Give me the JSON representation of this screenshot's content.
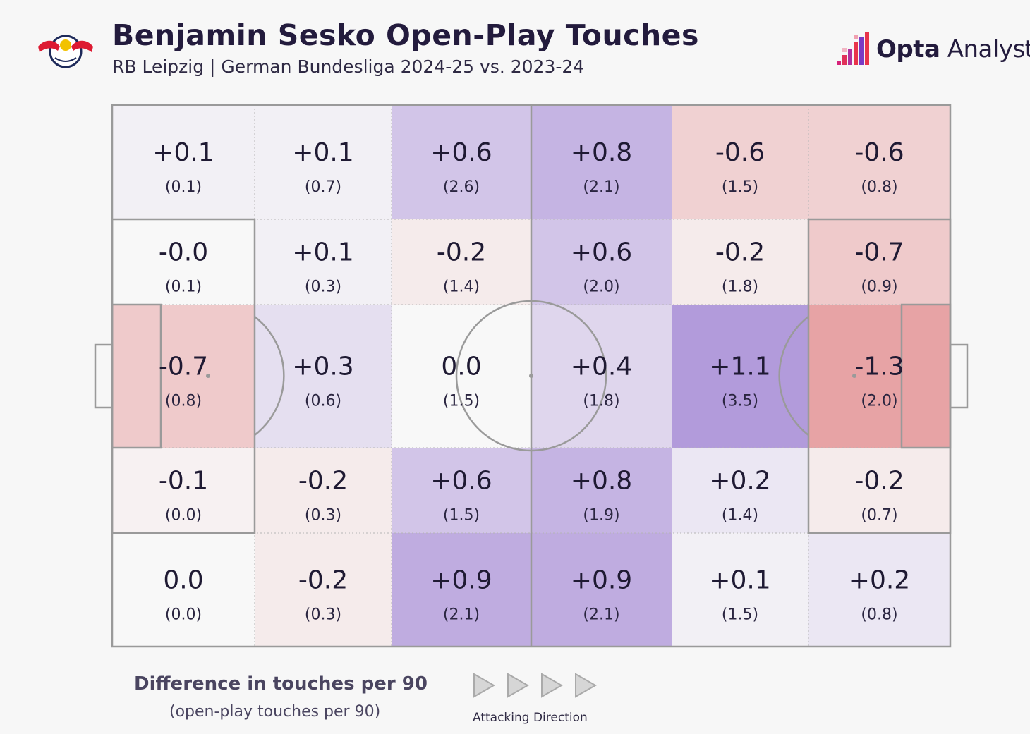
{
  "header": {
    "title": "Benjamin Sesko Open-Play Touches",
    "subtitle": "RB Leipzig | German Bundesliga 2024-25 vs. 2023-24",
    "brand_bold": "Opta",
    "brand_light": " Analyst",
    "club_logo_icon": "rb-leipzig-crest-icon",
    "brand_icon": "opta-bar-icon"
  },
  "legend": {
    "title": "Difference in touches per 90",
    "subtitle": "(open-play touches per 90)",
    "direction_label": "Attacking Direction",
    "direction_icon": "play-arrow-icon"
  },
  "colors": {
    "positive": "#a68ad6",
    "negative": "#e59a9c",
    "neutral": "#f8f8f8",
    "pitch_line": "#9a9a9a"
  },
  "chart_data": {
    "type": "heatmap",
    "columns": 6,
    "rows": 5,
    "cells": [
      [
        {
          "diff": "+0.1",
          "value": "(0.1)",
          "d": 0.1
        },
        {
          "diff": "+0.1",
          "value": "(0.7)",
          "d": 0.1
        },
        {
          "diff": "+0.6",
          "value": "(2.6)",
          "d": 0.6
        },
        {
          "diff": "+0.8",
          "value": "(2.1)",
          "d": 0.8
        },
        {
          "diff": "-0.6",
          "value": "(1.5)",
          "d": -0.6
        },
        {
          "diff": "-0.6",
          "value": "(0.8)",
          "d": -0.6
        }
      ],
      [
        {
          "diff": "-0.0",
          "value": "(0.1)",
          "d": 0.0
        },
        {
          "diff": "+0.1",
          "value": "(0.3)",
          "d": 0.1
        },
        {
          "diff": "-0.2",
          "value": "(1.4)",
          "d": -0.2
        },
        {
          "diff": "+0.6",
          "value": "(2.0)",
          "d": 0.6
        },
        {
          "diff": "-0.2",
          "value": "(1.8)",
          "d": -0.2
        },
        {
          "diff": "-0.7",
          "value": "(0.9)",
          "d": -0.7
        }
      ],
      [
        {
          "diff": "-0.7",
          "value": "(0.8)",
          "d": -0.7
        },
        {
          "diff": "+0.3",
          "value": "(0.6)",
          "d": 0.3
        },
        {
          "diff": "0.0",
          "value": "(1.5)",
          "d": 0.0
        },
        {
          "diff": "+0.4",
          "value": "(1.8)",
          "d": 0.4
        },
        {
          "diff": "+1.1",
          "value": "(3.5)",
          "d": 1.1
        },
        {
          "diff": "-1.3",
          "value": "(2.0)",
          "d": -1.3
        }
      ],
      [
        {
          "diff": "-0.1",
          "value": "(0.0)",
          "d": -0.1
        },
        {
          "diff": "-0.2",
          "value": "(0.3)",
          "d": -0.2
        },
        {
          "diff": "+0.6",
          "value": "(1.5)",
          "d": 0.6
        },
        {
          "diff": "+0.8",
          "value": "(1.9)",
          "d": 0.8
        },
        {
          "diff": "+0.2",
          "value": "(1.4)",
          "d": 0.2
        },
        {
          "diff": "-0.2",
          "value": "(0.7)",
          "d": -0.2
        }
      ],
      [
        {
          "diff": "0.0",
          "value": "(0.0)",
          "d": 0.0
        },
        {
          "diff": "-0.2",
          "value": "(0.3)",
          "d": -0.2
        },
        {
          "diff": "+0.9",
          "value": "(2.1)",
          "d": 0.9
        },
        {
          "diff": "+0.9",
          "value": "(2.1)",
          "d": 0.9
        },
        {
          "diff": "+0.1",
          "value": "(1.5)",
          "d": 0.1
        },
        {
          "diff": "+0.2",
          "value": "(0.8)",
          "d": 0.2
        }
      ]
    ]
  }
}
